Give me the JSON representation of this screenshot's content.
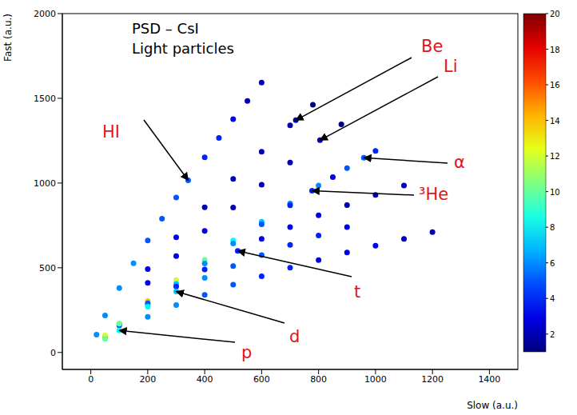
{
  "chart_data": {
    "type": "scatter",
    "title": "PSD – CsI",
    "subtitle": "Light particles",
    "x_label": "Slow (a.u.)",
    "y_label": "Fast (a.u.)",
    "xlim": [
      -100,
      1500
    ],
    "ylim": [
      -100,
      2000
    ],
    "xticks": [
      0,
      200,
      400,
      600,
      800,
      1000,
      1200,
      1400
    ],
    "yticks": [
      0,
      500,
      1000,
      1500,
      2000
    ],
    "grid": false,
    "marker": "circle",
    "series": [
      {
        "name": "HI",
        "x": [
          20,
          50,
          100,
          150,
          200,
          250,
          300,
          342,
          400,
          450,
          500,
          550,
          600
        ],
        "y": [
          105,
          218,
          380,
          526,
          661,
          790,
          915,
          1016,
          1152,
          1266,
          1377,
          1485,
          1593
        ],
        "counts": [
          6,
          6,
          6,
          6,
          5,
          5,
          5,
          5,
          4,
          4,
          3,
          2,
          2
        ]
      },
      {
        "name": "Be",
        "x": [
          200,
          300,
          400,
          500,
          600,
          700,
          720,
          780
        ],
        "y": [
          492,
          680,
          857,
          1024,
          1185,
          1341,
          1371,
          1462
        ],
        "counts": [
          3,
          3,
          2,
          2,
          2,
          2,
          2,
          1
        ]
      },
      {
        "name": "Li",
        "x": [
          200,
          300,
          400,
          500,
          600,
          700,
          805,
          880
        ],
        "y": [
          411,
          569,
          717,
          856,
          990,
          1121,
          1253,
          1346
        ],
        "counts": [
          3,
          3,
          3,
          2,
          2,
          2,
          2,
          1
        ]
      },
      {
        "name": "α",
        "x": [
          50,
          100,
          200,
          300,
          400,
          500,
          600,
          700,
          800,
          900,
          959,
          1000
        ],
        "y": [
          93,
          168,
          303,
          427,
          547,
          661,
          772,
          879,
          985,
          1088,
          1149,
          1190
        ],
        "counts": [
          18,
          16,
          14,
          12,
          10,
          8,
          7,
          6,
          6,
          5,
          5,
          4
        ]
      },
      {
        "name": "³He",
        "x": [
          200,
          300,
          400,
          500,
          600,
          700,
          777,
          850
        ],
        "y": [
          281,
          405,
          525,
          643,
          756,
          869,
          955,
          1035
        ],
        "counts": [
          8,
          7,
          6,
          6,
          5,
          4,
          4,
          3
        ]
      },
      {
        "name": "t",
        "x": [
          100,
          200,
          300,
          400,
          516,
          600,
          700,
          800,
          900,
          1000,
          1100
        ],
        "y": [
          160,
          290,
          390,
          490,
          600,
          670,
          740,
          810,
          870,
          930,
          985
        ],
        "counts": [
          5,
          5,
          4,
          4,
          4,
          3,
          3,
          3,
          2,
          2,
          2
        ]
      },
      {
        "name": "d",
        "x": [
          50,
          100,
          200,
          300,
          400,
          500,
          600,
          700,
          800,
          900
        ],
        "y": [
          100,
          170,
          270,
          360,
          440,
          510,
          575,
          635,
          690,
          740
        ],
        "counts": [
          12,
          10,
          8,
          7,
          6,
          5,
          5,
          4,
          4,
          3
        ]
      },
      {
        "name": "p",
        "x": [
          50,
          100,
          200,
          300,
          400,
          500,
          600,
          700,
          800,
          900,
          1000,
          1100,
          1200
        ],
        "y": [
          80,
          130,
          210,
          280,
          340,
          400,
          450,
          500,
          545,
          590,
          630,
          670,
          710
        ],
        "counts": [
          10,
          8,
          6,
          6,
          5,
          5,
          4,
          4,
          3,
          3,
          3,
          2,
          2
        ]
      }
    ],
    "colorbar": {
      "range": [
        1,
        20
      ],
      "ticks": [
        2,
        4,
        6,
        8,
        10,
        12,
        14,
        16,
        18,
        20
      ]
    }
  }
}
